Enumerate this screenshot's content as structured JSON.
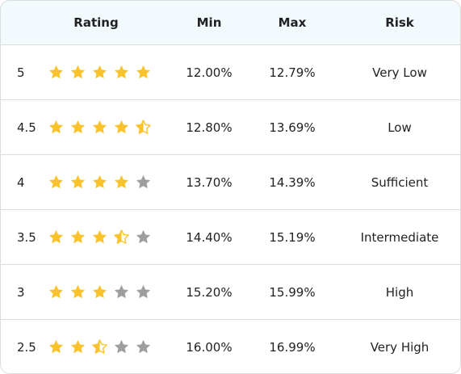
{
  "headers": {
    "rating": "Rating",
    "min": "Min",
    "max": "Max",
    "risk": "Risk"
  },
  "colors": {
    "star_filled": "#fac32d",
    "star_empty": "#9e9e9e",
    "header_bg": "#f2fafe",
    "border": "#dcdcdc"
  },
  "rows": [
    {
      "rating": "5",
      "stars": 5,
      "min": "12.00%",
      "max": "12.79%",
      "risk": "Very Low"
    },
    {
      "rating": "4.5",
      "stars": 4.5,
      "min": "12.80%",
      "max": "13.69%",
      "risk": "Low"
    },
    {
      "rating": "4",
      "stars": 4,
      "min": "13.70%",
      "max": "14.39%",
      "risk": "Sufficient"
    },
    {
      "rating": "3.5",
      "stars": 3.5,
      "min": "14.40%",
      "max": "15.19%",
      "risk": "Intermediate"
    },
    {
      "rating": "3",
      "stars": 3,
      "min": "15.20%",
      "max": "15.99%",
      "risk": "High"
    },
    {
      "rating": "2.5",
      "stars": 2.5,
      "min": "16.00%",
      "max": "16.99%",
      "risk": "Very High"
    }
  ]
}
